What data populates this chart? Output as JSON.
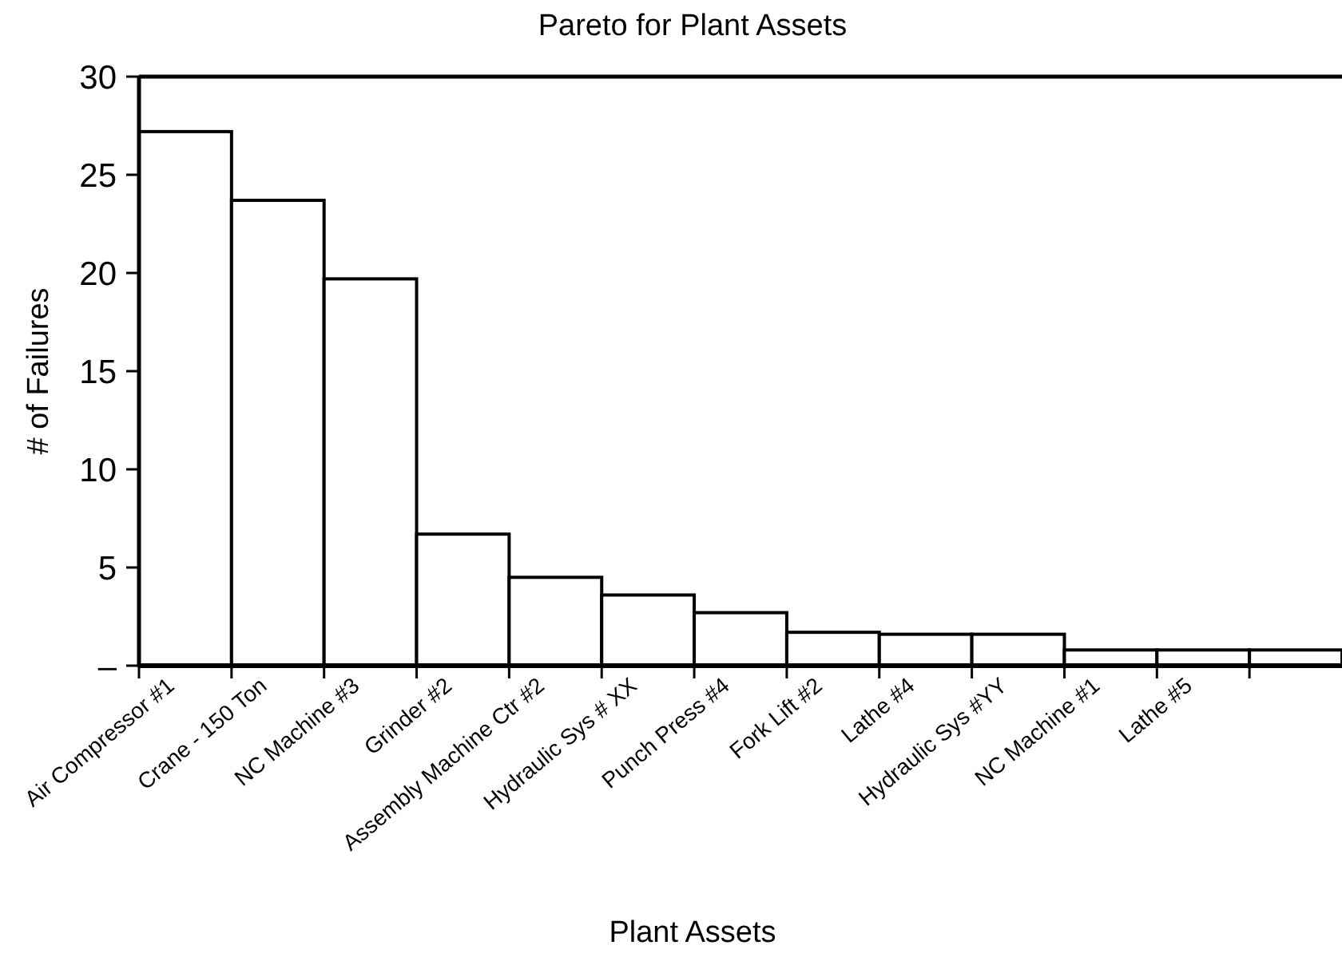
{
  "chart_data": {
    "type": "bar",
    "title": "Pareto for Plant Assets",
    "xlabel": "Plant Assets",
    "ylabel": "# of Failures",
    "categories": [
      "Air Compressor #1",
      "Crane - 150 Ton",
      "NC Machine #3",
      "Grinder #2",
      "Assembly Machine Ctr #2",
      "Hydraulic Sys # XX",
      "Punch Press #4",
      "Fork Lift #2",
      "Lathe #4",
      "Hydraulic Sys #YY",
      "NC Machine #1",
      "Lathe #5",
      null
    ],
    "values": [
      27.2,
      23.7,
      19.7,
      6.7,
      4.5,
      3.6,
      2.7,
      1.7,
      1.6,
      1.6,
      0.8,
      0.8,
      0.8
    ],
    "color": "#ffffff",
    "ylim": [
      0,
      30
    ],
    "yticks": [
      {
        "value": 0,
        "label": "–"
      },
      5,
      10,
      15,
      20,
      25,
      30
    ]
  }
}
